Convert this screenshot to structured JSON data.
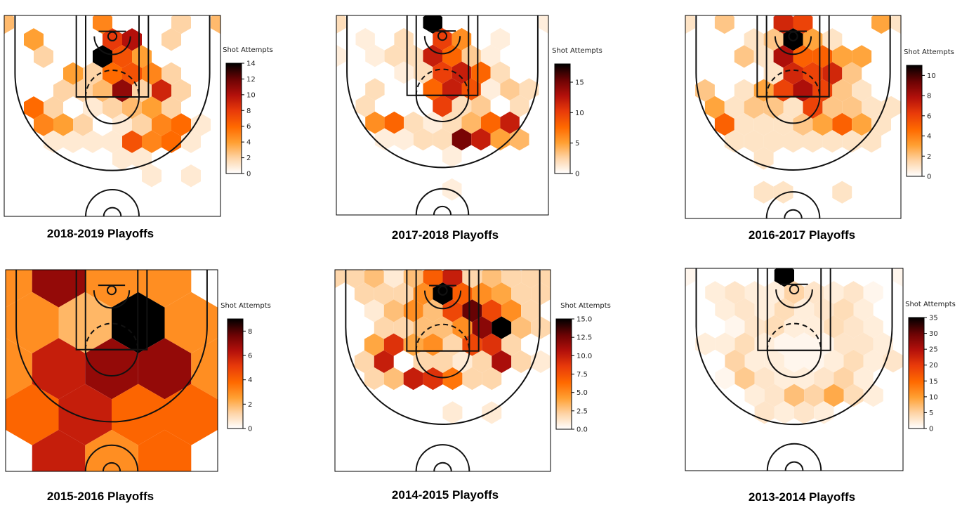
{
  "figure": {
    "colorbar_title": "Shot Attempts",
    "colormap": "gist_heat_r",
    "colormap_stops": [
      "#ffffff",
      "#fed4a6",
      "#ffa033",
      "#ff6a00",
      "#e83a0a",
      "#b3100b",
      "#6e0304",
      "#000000"
    ]
  },
  "chart_data": [
    {
      "type": "heatmap",
      "subtype": "hexbin",
      "title": "2018-2019 Playoffs",
      "colorbar_label": "Shot Attempts",
      "vmax": 14,
      "colorbar_ticks": [
        0,
        2,
        4,
        6,
        8,
        10,
        12,
        14
      ],
      "hex_counts": [
        [
          3,
          0,
          0,
          0,
          0,
          5,
          0,
          0,
          0,
          2,
          0,
          3
        ],
        [
          0,
          4,
          0,
          0,
          0,
          8,
          10,
          0,
          2,
          0,
          0,
          0
        ],
        [
          0,
          0,
          2,
          0,
          0,
          14,
          7,
          4,
          0,
          0,
          0,
          0
        ],
        [
          0,
          0,
          0,
          4,
          2,
          6,
          7,
          5,
          2,
          0,
          0,
          0
        ],
        [
          0,
          0,
          0,
          2,
          2,
          3,
          11,
          2,
          9,
          2,
          0,
          0
        ],
        [
          0,
          6,
          2,
          0,
          1,
          2,
          3,
          4,
          2,
          0,
          0,
          0
        ],
        [
          0,
          0,
          5,
          4,
          2,
          0,
          1,
          2,
          5,
          6,
          1,
          0
        ],
        [
          0,
          0,
          1,
          1,
          1,
          1,
          7,
          5,
          6,
          1,
          0,
          0
        ],
        [
          0,
          0,
          0,
          0,
          0,
          0,
          1,
          1,
          0,
          0,
          0,
          0
        ],
        [
          0,
          0,
          0,
          0,
          0,
          0,
          0,
          1,
          0,
          1,
          0,
          0
        ],
        [
          0,
          0,
          0,
          0,
          0,
          0,
          0,
          0,
          0,
          0,
          0,
          0
        ]
      ]
    },
    {
      "type": "heatmap",
      "subtype": "hexbin",
      "title": "2017-2018 Playoffs",
      "colorbar_label": "Shot Attempts",
      "vmax": 18,
      "colorbar_ticks": [
        0,
        5,
        10,
        15
      ],
      "hex_counts": [
        [
          2,
          0,
          0,
          0,
          0,
          18,
          0,
          0,
          0,
          0,
          0,
          1
        ],
        [
          0,
          1,
          0,
          2,
          0,
          10,
          6,
          0,
          1,
          0,
          0,
          0
        ],
        [
          1,
          0,
          1,
          2,
          2,
          12,
          8,
          3,
          1,
          0,
          0,
          0
        ],
        [
          0,
          0,
          0,
          1,
          2,
          10,
          12,
          8,
          2,
          0,
          0,
          0
        ],
        [
          0,
          0,
          2,
          0,
          0,
          8,
          12,
          9,
          1,
          3,
          2,
          0
        ],
        [
          0,
          2,
          0,
          0,
          0,
          10,
          2,
          3,
          0,
          2,
          0,
          0
        ],
        [
          0,
          0,
          6,
          8,
          2,
          1,
          2,
          4,
          8,
          12,
          0,
          0
        ],
        [
          0,
          0,
          1,
          1,
          2,
          2,
          15,
          12,
          5,
          4,
          0,
          0
        ],
        [
          0,
          0,
          0,
          0,
          0,
          0,
          1,
          0,
          0,
          0,
          0,
          0
        ],
        [
          0,
          0,
          0,
          0,
          0,
          0,
          0,
          0,
          0,
          0,
          0,
          0
        ],
        [
          0,
          0,
          0,
          0,
          0,
          0,
          1,
          0,
          0,
          0,
          0,
          0
        ]
      ]
    },
    {
      "type": "heatmap",
      "subtype": "hexbin",
      "title": "2016-2017 Playoffs",
      "colorbar_label": "Shot Attempts",
      "vmax": 11,
      "colorbar_ticks": [
        0,
        2,
        4,
        6,
        8,
        10
      ],
      "hex_counts": [
        [
          1,
          0,
          2,
          0,
          0,
          7,
          6,
          0,
          0,
          0,
          3,
          1
        ],
        [
          0,
          0,
          0,
          1,
          2,
          11,
          3,
          1,
          0,
          0,
          0,
          0
        ],
        [
          0,
          0,
          0,
          2,
          1,
          8,
          5,
          5,
          3,
          3,
          0,
          0
        ],
        [
          0,
          0,
          0,
          0,
          1,
          7,
          6,
          7,
          2,
          0,
          0,
          0
        ],
        [
          0,
          2,
          0,
          1,
          3,
          6,
          8,
          6,
          2,
          1,
          0,
          0
        ],
        [
          0,
          3,
          1,
          2,
          2,
          1,
          6,
          2,
          2,
          1,
          1,
          0
        ],
        [
          0,
          0,
          5,
          1,
          1,
          1,
          2,
          3,
          5,
          3,
          1,
          0
        ],
        [
          0,
          0,
          1,
          1,
          1,
          1,
          1,
          1,
          1,
          1,
          0,
          0
        ],
        [
          0,
          0,
          0,
          0,
          1,
          0,
          0,
          0,
          0,
          0,
          0,
          0
        ],
        [
          0,
          0,
          0,
          0,
          0,
          0,
          0,
          0,
          0,
          0,
          0,
          0
        ],
        [
          0,
          0,
          0,
          0,
          1,
          1,
          0,
          0,
          1,
          0,
          0,
          0
        ]
      ]
    },
    {
      "type": "heatmap",
      "subtype": "hexbin",
      "title": "2015-2016 Playoffs",
      "colorbar_label": "Shot Attempts",
      "vmax": 9,
      "colorbar_ticks": [
        0,
        2,
        4,
        6,
        8
      ],
      "hex_counts": [
        [
          3,
          7,
          3,
          3
        ],
        [
          3,
          2,
          9,
          3,
          2
        ],
        [
          3,
          6,
          7,
          7,
          3
        ],
        [
          4,
          6,
          4,
          4
        ],
        [
          0,
          6,
          3,
          4,
          0
        ],
        [
          0,
          0,
          0,
          0
        ]
      ]
    },
    {
      "type": "heatmap",
      "subtype": "hexbin",
      "title": "2014-2015 Playoffs",
      "colorbar_label": "Shot Attempts",
      "vmax": 15,
      "colorbar_ticks": [
        0.0,
        2.5,
        5.0,
        7.5,
        10.0,
        12.5,
        15.0
      ],
      "hex_counts": [
        [
          2,
          2,
          3,
          1,
          3,
          7,
          10,
          2,
          3,
          2,
          2,
          2
        ],
        [
          0,
          2,
          2,
          2,
          5,
          15,
          7,
          5,
          4,
          2,
          2,
          0
        ],
        [
          0,
          0,
          1,
          3,
          5,
          3,
          8,
          13,
          8,
          5,
          2,
          0
        ],
        [
          0,
          0,
          2,
          2,
          3,
          3,
          5,
          12,
          15,
          3,
          2,
          0
        ],
        [
          0,
          0,
          4,
          9,
          4,
          5,
          2,
          8,
          9,
          2,
          0,
          0
        ],
        [
          0,
          2,
          10,
          0,
          2,
          2,
          1,
          2,
          11,
          2,
          1,
          0
        ],
        [
          0,
          0,
          2,
          3,
          10,
          9,
          6,
          2,
          2,
          0,
          0,
          0
        ],
        [
          0,
          0,
          0,
          0,
          0,
          0,
          0,
          0,
          0,
          0,
          0,
          0
        ],
        [
          0,
          0,
          0,
          0,
          0,
          0,
          1,
          0,
          1,
          0,
          0,
          0
        ],
        [
          0,
          0,
          0,
          0,
          0,
          0,
          0,
          0,
          0,
          0,
          0,
          0
        ],
        [
          0,
          0,
          0,
          0,
          0,
          0,
          0,
          0,
          0,
          0,
          0,
          0
        ]
      ]
    },
    {
      "type": "heatmap",
      "subtype": "hexbin",
      "title": "2013-2014 Playoffs",
      "colorbar_label": "Shot Attempts",
      "vmax": 35,
      "colorbar_ticks": [
        0,
        5,
        10,
        15,
        20,
        25,
        30,
        35
      ],
      "hex_counts": [
        [
          1,
          0,
          0,
          0,
          0,
          35,
          0,
          0,
          0,
          0,
          0,
          1
        ],
        [
          0,
          2,
          3,
          2,
          2,
          5,
          3,
          2,
          3,
          1,
          0,
          0
        ],
        [
          0,
          0,
          2,
          3,
          2,
          4,
          2,
          3,
          4,
          2,
          0,
          0
        ],
        [
          0,
          0,
          1,
          3,
          4,
          2,
          2,
          4,
          3,
          2,
          0,
          0
        ],
        [
          0,
          2,
          2,
          4,
          2,
          1,
          1,
          1,
          3,
          3,
          2,
          0
        ],
        [
          0,
          0,
          5,
          2,
          2,
          1,
          1,
          2,
          4,
          2,
          3,
          0
        ],
        [
          0,
          0,
          1,
          6,
          3,
          2,
          2,
          3,
          5,
          2,
          0,
          0
        ],
        [
          0,
          0,
          0,
          2,
          3,
          7,
          5,
          9,
          4,
          2,
          0,
          0
        ],
        [
          0,
          0,
          0,
          0,
          3,
          2,
          3,
          2,
          0,
          0,
          0,
          0
        ],
        [
          0,
          0,
          0,
          0,
          0,
          0,
          0,
          0,
          0,
          0,
          0,
          0
        ],
        [
          0,
          0,
          0,
          0,
          0,
          0,
          0,
          0,
          0,
          0,
          0,
          0
        ]
      ]
    }
  ]
}
